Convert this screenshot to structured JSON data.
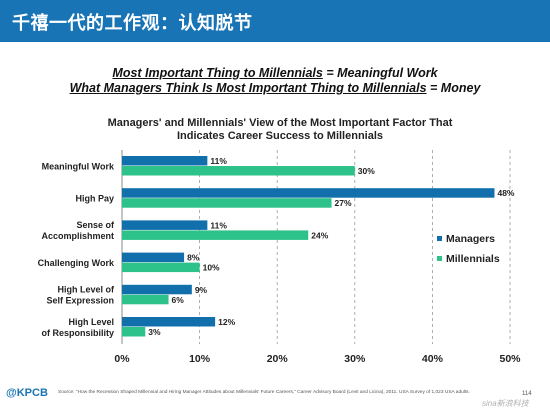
{
  "slide": {
    "banner_title": "千禧一代的工作观：认知脱节",
    "headline_1_left": "Most Important Thing to Millennials",
    "headline_1_right": " = Meaningful Work",
    "headline_2_left": "What Managers Think Is Most Important Thing to Millennials",
    "headline_2_right": " = Money",
    "brand": "@KPCB",
    "source": "Source: \"How the Recession Shaped Millennial and Hiring Manager Attitudes about Millennials' Future Careers,\" Career Advisory Board (Levit and Licina), 2011. USA Survey of 1,023 USA adults.",
    "page_number": "114",
    "watermark": "sina新浪科技"
  },
  "colors": {
    "banner": "#1874b4",
    "managers": "#1170ac",
    "millennials": "#2dc28a"
  },
  "chart_data": {
    "type": "bar",
    "orientation": "horizontal",
    "title_line_1": "Managers' and Millennials' View of the Most Important Factor That",
    "title_line_2": "Indicates Career Success to Millennials",
    "categories": [
      [
        "Meaningful Work"
      ],
      [
        "High Pay"
      ],
      [
        "Sense of",
        "Accomplishment"
      ],
      [
        "Challenging Work"
      ],
      [
        "High Level of",
        "Self Expression"
      ],
      [
        "High Level",
        "of Responsibility"
      ]
    ],
    "series": [
      {
        "name": "Managers",
        "values": [
          11,
          48,
          11,
          8,
          9,
          12
        ]
      },
      {
        "name": "Millennials",
        "values": [
          30,
          27,
          24,
          10,
          6,
          3
        ]
      }
    ],
    "value_suffix": "%",
    "xlim": [
      0,
      50
    ],
    "xticks": [
      0,
      10,
      20,
      30,
      40,
      50
    ],
    "xtick_labels": [
      "0%",
      "10%",
      "20%",
      "30%",
      "40%",
      "50%"
    ],
    "grid": "vertical dashed",
    "legend_position": "right"
  }
}
